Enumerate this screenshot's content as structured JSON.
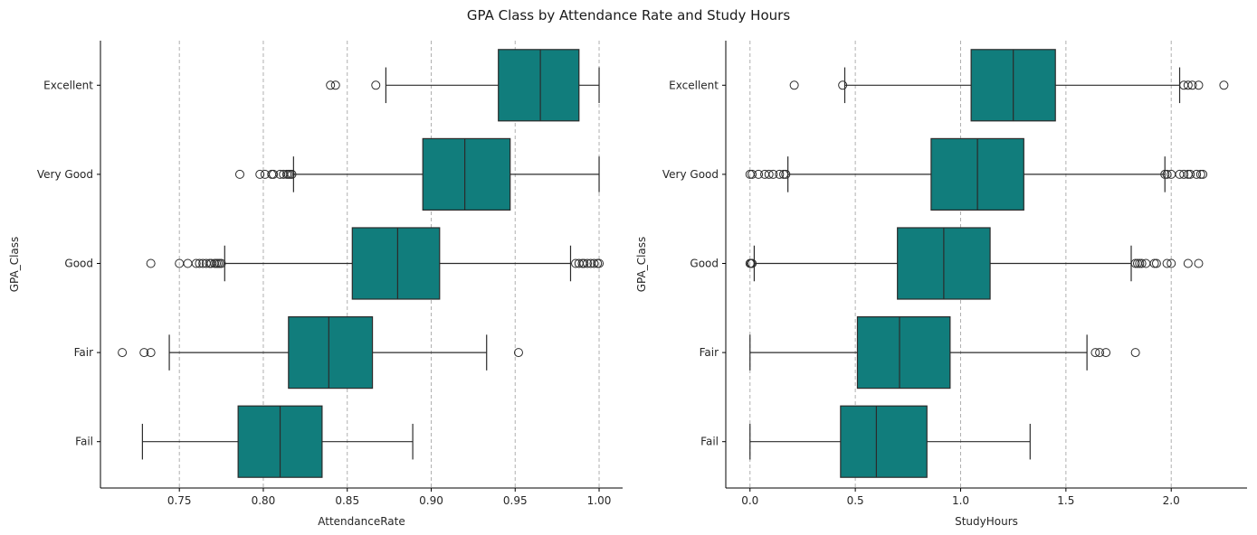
{
  "figure": {
    "title": "GPA Class by Attendance Rate and Study Hours"
  },
  "style": {
    "box_color": "#117d7c",
    "line_color": "#2b2b2b",
    "grid_color": "#b0b0b0"
  },
  "chart_data": [
    {
      "type": "boxplot",
      "orientation": "horizontal",
      "xlabel": "AttendanceRate",
      "ylabel": "GPA_Class",
      "xlim": [
        0.703,
        1.014
      ],
      "xticks": [
        0.75,
        0.8,
        0.85,
        0.9,
        0.95,
        1.0
      ],
      "xtick_labels": [
        "0.75",
        "0.80",
        "0.85",
        "0.90",
        "0.95",
        "1.00"
      ],
      "grid": "x-dashed",
      "categories": [
        "Excellent",
        "Very Good",
        "Good",
        "Fair",
        "Fail"
      ],
      "boxes": [
        {
          "category": "Excellent",
          "whisker_low": 0.873,
          "q1": 0.94,
          "median": 0.965,
          "q3": 0.988,
          "whisker_high": 1.0,
          "outliers": [
            0.84,
            0.843,
            0.867
          ]
        },
        {
          "category": "Very Good",
          "whisker_low": 0.818,
          "q1": 0.895,
          "median": 0.92,
          "q3": 0.947,
          "whisker_high": 1.0,
          "outliers": [
            0.786,
            0.798,
            0.801,
            0.805,
            0.806,
            0.81,
            0.812,
            0.814,
            0.815,
            0.816,
            0.817
          ]
        },
        {
          "category": "Good",
          "whisker_low": 0.777,
          "q1": 0.853,
          "median": 0.88,
          "q3": 0.905,
          "whisker_high": 0.983,
          "outliers": [
            0.733,
            0.75,
            0.755,
            0.76,
            0.762,
            0.764,
            0.766,
            0.768,
            0.769,
            0.771,
            0.772,
            0.773,
            0.774,
            0.775,
            0.986,
            0.988,
            0.99,
            0.991,
            0.993,
            0.995,
            0.997,
            0.999,
            1.0
          ]
        },
        {
          "category": "Fair",
          "whisker_low": 0.744,
          "q1": 0.815,
          "median": 0.839,
          "q3": 0.865,
          "whisker_high": 0.933,
          "outliers": [
            0.716,
            0.729,
            0.733,
            0.952
          ]
        },
        {
          "category": "Fail",
          "whisker_low": 0.728,
          "q1": 0.785,
          "median": 0.81,
          "q3": 0.835,
          "whisker_high": 0.889,
          "outliers": []
        }
      ]
    },
    {
      "type": "boxplot",
      "orientation": "horizontal",
      "xlabel": "StudyHours",
      "ylabel": "GPA_Class",
      "xlim": [
        -0.115,
        2.36
      ],
      "xticks": [
        0.0,
        0.5,
        1.0,
        1.5,
        2.0
      ],
      "xtick_labels": [
        "0.0",
        "0.5",
        "1.0",
        "1.5",
        "2.0"
      ],
      "grid": "x-dashed",
      "categories": [
        "Excellent",
        "Very Good",
        "Good",
        "Fair",
        "Fail"
      ],
      "boxes": [
        {
          "category": "Excellent",
          "whisker_low": 0.45,
          "q1": 1.05,
          "median": 1.25,
          "q3": 1.45,
          "whisker_high": 2.04,
          "outliers": [
            0.21,
            0.44,
            2.06,
            2.08,
            2.1,
            2.13,
            2.25
          ]
        },
        {
          "category": "Very Good",
          "whisker_low": 0.18,
          "q1": 0.86,
          "median": 1.08,
          "q3": 1.3,
          "whisker_high": 1.97,
          "outliers": [
            0.0,
            0.01,
            0.04,
            0.07,
            0.09,
            0.11,
            0.14,
            0.16,
            0.17,
            1.97,
            1.98,
            2.0,
            2.04,
            2.06,
            2.08,
            2.09,
            2.12,
            2.14,
            2.15
          ]
        },
        {
          "category": "Good",
          "whisker_low": 0.02,
          "q1": 0.7,
          "median": 0.92,
          "q3": 1.14,
          "whisker_high": 1.81,
          "outliers": [
            0.0,
            0.005,
            0.01,
            1.83,
            1.84,
            1.85,
            1.86,
            1.88,
            1.92,
            1.93,
            1.98,
            2.0,
            2.08,
            2.13
          ]
        },
        {
          "category": "Fair",
          "whisker_low": 0.0,
          "q1": 0.51,
          "median": 0.71,
          "q3": 0.95,
          "whisker_high": 1.6,
          "outliers": [
            1.64,
            1.66,
            1.69,
            1.83
          ]
        },
        {
          "category": "Fail",
          "whisker_low": 0.0,
          "q1": 0.43,
          "median": 0.6,
          "q3": 0.84,
          "whisker_high": 1.33,
          "outliers": []
        }
      ]
    }
  ]
}
